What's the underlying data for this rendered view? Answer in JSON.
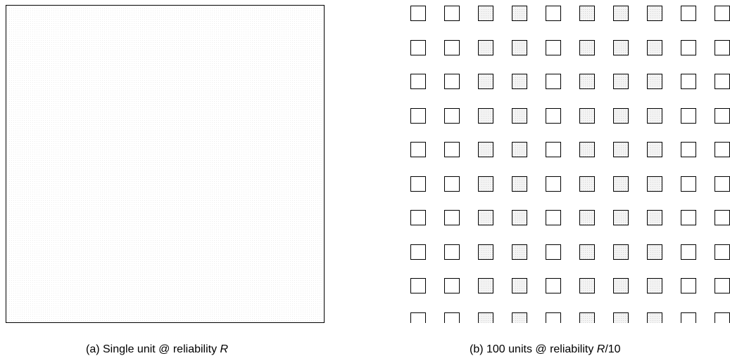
{
  "panel_a": {
    "caption_prefix": "(a) Single unit @ reliability ",
    "caption_var": "R",
    "caption_suffix": ""
  },
  "panel_b": {
    "caption_prefix": "(b) 100 units @ reliability ",
    "caption_var": "R",
    "caption_suffix": "/10",
    "rows": 10,
    "cols": 10,
    "shaded_columns": [
      2,
      3,
      5,
      6,
      7
    ]
  }
}
